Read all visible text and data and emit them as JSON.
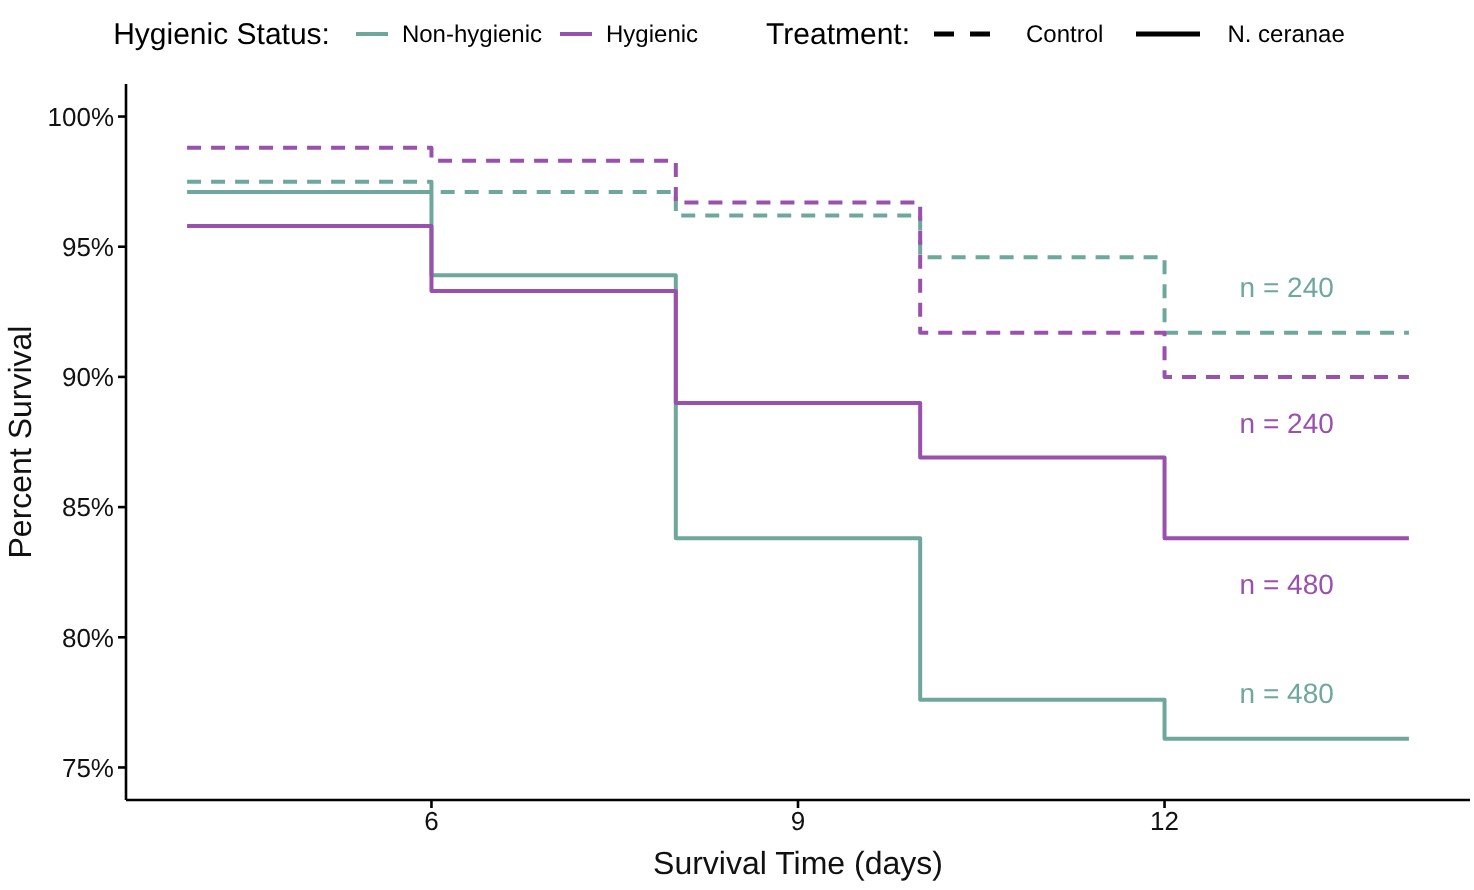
{
  "chart_data": {
    "type": "step",
    "xlabel": "Survival Time (days)",
    "ylabel": "Percent Survival",
    "legend_title": "Hygienic Status:",
    "legend": "top",
    "xlim": [
      3.5,
      14.5
    ],
    "xticks": [
      6,
      9,
      12
    ],
    "ylim": [
      73.75,
      101.25
    ],
    "yticks": [
      {
        "value": 75,
        "label": "75%"
      },
      {
        "value": 80,
        "label": "80%"
      },
      {
        "value": 85,
        "label": "85%"
      },
      {
        "value": 90,
        "label": "90%"
      },
      {
        "value": 95,
        "label": "95%"
      },
      {
        "value": 100,
        "label": "100%"
      }
    ],
    "grid": false,
    "series": [
      {
        "color": "#6ea89d",
        "line_style": "dashed",
        "x": [
          4,
          6,
          8,
          10,
          12,
          14
        ],
        "values": [
          97.5,
          97.1,
          96.2,
          94.6,
          91.7,
          91.7
        ]
      },
      {
        "color": "#9a50ad",
        "line_style": "dashed",
        "x": [
          4,
          6,
          8,
          10,
          12,
          14
        ],
        "values": [
          98.8,
          98.3,
          96.7,
          91.7,
          90.0,
          90.0
        ]
      },
      {
        "name": "Non-hygienic",
        "color": "#6ea89d",
        "line_style": "solid",
        "x": [
          4,
          6,
          8,
          10,
          12,
          14
        ],
        "values": [
          97.1,
          93.9,
          83.8,
          77.6,
          76.1,
          76.1
        ]
      },
      {
        "name": "Hygienic",
        "color": "#9a50ad",
        "line_style": "solid",
        "x": [
          4,
          6,
          8,
          10,
          12,
          14
        ],
        "values": [
          95.8,
          93.3,
          89.0,
          86.9,
          83.8,
          83.8
        ]
      }
    ],
    "annotations": [
      "Treatment:",
      "Control",
      "N. ceranae",
      "n = 240",
      "n = 240",
      "n = 480",
      "n = 480"
    ]
  }
}
